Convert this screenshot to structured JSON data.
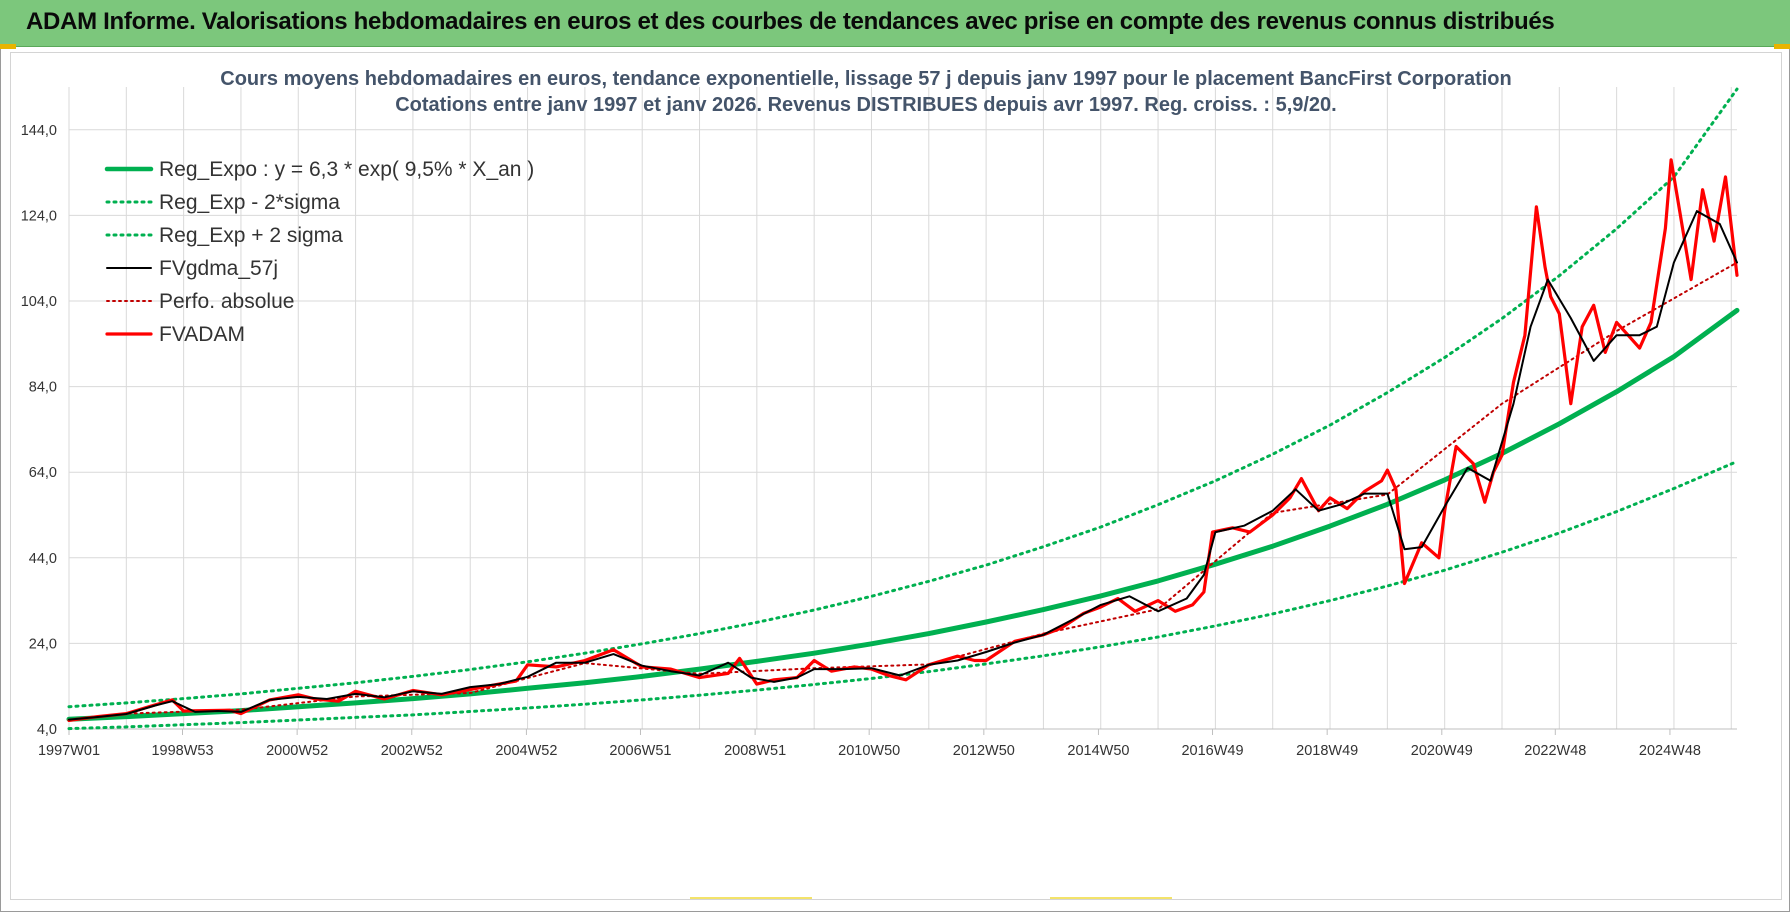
{
  "header": {
    "title": "ADAM Informe. Valorisations hebdomadaires en euros et des courbes de tendances avec prise en compte des revenus connus distribués"
  },
  "colors": {
    "banner": "#7cc77c",
    "reg": "#00b050",
    "avg": "#000000",
    "fvadam": "#ff0000",
    "perfo": "#c00000"
  },
  "chart_data": {
    "type": "line",
    "title": "Cours moyens hebdomadaires en euros, tendance exponentielle, lissage 57 j depuis janv 1997  pour le placement BancFirst Corporation",
    "subtitle": "Cotations entre janv 1997 et janv 2026. Revenus DISTRIBUES depuis avr 1997. Reg. croiss. : 5,9/20.",
    "xlabel": "",
    "ylabel": "",
    "xlim": [
      1997.0,
      2026.1
    ],
    "ylim": [
      4,
      154
    ],
    "yticks": [
      4,
      24,
      44,
      64,
      84,
      104,
      124,
      144
    ],
    "ytick_labels": [
      "4,0",
      "24,0",
      "44,0",
      "64,0",
      "84,0",
      "104,0",
      "124,0",
      "144,0"
    ],
    "xticks": [
      1997.0,
      1998.98,
      2000.98,
      2002.98,
      2004.98,
      2006.97,
      2008.97,
      2010.96,
      2012.96,
      2014.96,
      2016.95,
      2018.95,
      2020.95,
      2022.93,
      2024.93
    ],
    "xtick_labels": [
      "1997W01",
      "1998W53",
      "2000W52",
      "2002W52",
      "2004W52",
      "2006W51",
      "2008W51",
      "2010W50",
      "2012W50",
      "2014W50",
      "2016W49",
      "2018W49",
      "2020W49",
      "2022W48",
      "2024W48"
    ],
    "legend": {
      "position": "top-left",
      "entries": [
        "Reg_Expo : y = 6,3 * exp( 9,5% *  X_an )",
        "Reg_Exp - 2*sigma",
        "Reg_Exp + 2 sigma",
        "FVgdma_57j",
        "Perfo. absolue",
        "FVADAM"
      ]
    },
    "series": [
      {
        "name": "Reg_Expo : y = 6,3 * exp( 9,5% *  X_an )",
        "style": "solid-thick-green",
        "x": [
          1997,
          1998,
          1999,
          2000,
          2001,
          2002,
          2003,
          2004,
          2005,
          2006,
          2007,
          2008,
          2009,
          2010,
          2011,
          2012,
          2013,
          2014,
          2015,
          2016,
          2017,
          2018,
          2019,
          2020,
          2021,
          2022,
          2023,
          2024,
          2025,
          2026.1
        ],
        "values": [
          6.3,
          6.9,
          7.6,
          8.3,
          9.2,
          10.1,
          11.1,
          12.2,
          13.5,
          14.8,
          16.3,
          18.0,
          19.8,
          21.7,
          23.9,
          26.3,
          29.0,
          31.9,
          35.1,
          38.6,
          42.5,
          46.7,
          51.4,
          56.5,
          62.2,
          68.4,
          75.3,
          82.8,
          91.0,
          101.8
        ]
      },
      {
        "name": "Reg_Exp - 2*sigma",
        "style": "dotted-green",
        "x": [
          1997,
          1998,
          1999,
          2000,
          2001,
          2002,
          2003,
          2004,
          2005,
          2006,
          2007,
          2008,
          2009,
          2010,
          2011,
          2012,
          2013,
          2014,
          2015,
          2016,
          2017,
          2018,
          2019,
          2020,
          2021,
          2022,
          2023,
          2024,
          2025,
          2026.1
        ],
        "values": [
          4.1,
          4.5,
          5.0,
          5.5,
          6.1,
          6.7,
          7.3,
          8.1,
          8.9,
          9.8,
          10.8,
          11.9,
          13.1,
          14.4,
          15.8,
          17.4,
          19.2,
          21.1,
          23.2,
          25.5,
          28.1,
          30.9,
          34.0,
          37.4,
          41.1,
          45.3,
          49.8,
          54.8,
          60.2,
          66.5
        ]
      },
      {
        "name": "Reg_Exp + 2 sigma",
        "style": "dotted-green",
        "x": [
          1997,
          1998,
          1999,
          2000,
          2001,
          2002,
          2003,
          2004,
          2005,
          2006,
          2007,
          2008,
          2009,
          2010,
          2011,
          2012,
          2013,
          2014,
          2015,
          2016,
          2017,
          2018,
          2019,
          2020,
          2021,
          2022,
          2023,
          2024,
          2025,
          2026.1
        ],
        "values": [
          9.2,
          10.1,
          11.1,
          12.2,
          13.5,
          14.8,
          16.3,
          17.9,
          19.7,
          21.7,
          23.9,
          26.3,
          28.9,
          31.8,
          35.0,
          38.5,
          42.3,
          46.6,
          51.2,
          56.4,
          62.0,
          68.2,
          75.0,
          82.6,
          90.8,
          99.9,
          109.9,
          120.9,
          133.0,
          153.5
        ]
      },
      {
        "name": "FVgdma_57j",
        "style": "solid-black",
        "x": [
          1997.0,
          1997.5,
          1998.0,
          1998.5,
          1998.8,
          1999.2,
          1999.6,
          2000.0,
          2000.5,
          2001.0,
          2001.5,
          2002.0,
          2002.5,
          2003.0,
          2003.5,
          2004.0,
          2004.5,
          2005.0,
          2005.5,
          2006.0,
          2006.5,
          2007.0,
          2007.5,
          2008.0,
          2008.5,
          2008.9,
          2009.3,
          2009.7,
          2010.0,
          2010.5,
          2011.0,
          2011.5,
          2012.0,
          2012.5,
          2013.0,
          2013.5,
          2014.0,
          2014.5,
          2015.0,
          2015.5,
          2016.0,
          2016.5,
          2016.8,
          2017.0,
          2017.5,
          2018.0,
          2018.4,
          2018.8,
          2019.2,
          2019.6,
          2020.0,
          2020.3,
          2020.6,
          2021.0,
          2021.4,
          2021.8,
          2022.2,
          2022.5,
          2022.8,
          2023.2,
          2023.6,
          2024.0,
          2024.4,
          2024.7,
          2025.0,
          2025.4,
          2025.8,
          2026.1
        ],
        "values": [
          6.2,
          6.8,
          7.5,
          9.5,
          10.5,
          8.0,
          8.2,
          8.0,
          10.8,
          11.5,
          11.0,
          12.2,
          11.4,
          12.8,
          12.2,
          13.8,
          14.5,
          16.2,
          19.5,
          19.5,
          21.5,
          18.8,
          17.5,
          16.5,
          19.5,
          16.0,
          15.0,
          16.0,
          18.0,
          18.0,
          18.2,
          16.5,
          19.0,
          20.0,
          22.0,
          24.2,
          26.0,
          29.5,
          33.0,
          35.0,
          31.5,
          34.5,
          40.0,
          50.0,
          51.5,
          55.0,
          60.0,
          55.0,
          56.5,
          59.0,
          59.0,
          46.0,
          46.5,
          56.0,
          65.0,
          62.0,
          80.0,
          98.0,
          109.0,
          100.0,
          90.0,
          96.0,
          96.0,
          98.0,
          113.0,
          125.0,
          122.0,
          113.0
        ]
      },
      {
        "name": "Perfo. absolue",
        "style": "dotted-red",
        "x": [
          1997.0,
          1998.0,
          2000.0,
          2002.0,
          2004.0,
          2006.0,
          2008.0,
          2010.0,
          2012.0,
          2014.0,
          2016.0,
          2018.0,
          2020.0,
          2022.0,
          2024.0,
          2026.1
        ],
        "values": [
          6.2,
          7.6,
          8.5,
          11.6,
          12.4,
          19.4,
          16.9,
          18.2,
          19.1,
          26.3,
          32.0,
          54.5,
          58.8,
          80.0,
          97.0,
          113.0
        ]
      },
      {
        "name": "FVADAM",
        "style": "solid-thick-red",
        "x": [
          1997.0,
          1997.5,
          1998.0,
          1998.4,
          1998.8,
          1999.0,
          1999.4,
          1999.8,
          2000.0,
          2000.5,
          2001.0,
          2001.3,
          2001.7,
          2002.0,
          2002.5,
          2003.0,
          2003.5,
          2004.0,
          2004.5,
          2004.8,
          2005.0,
          2005.5,
          2006.0,
          2006.5,
          2007.0,
          2007.5,
          2008.0,
          2008.5,
          2008.7,
          2009.0,
          2009.3,
          2009.7,
          2010.0,
          2010.3,
          2010.7,
          2011.0,
          2011.3,
          2011.6,
          2012.0,
          2012.5,
          2012.8,
          2013.0,
          2013.5,
          2014.0,
          2014.3,
          2014.7,
          2015.0,
          2015.3,
          2015.6,
          2016.0,
          2016.3,
          2016.6,
          2016.8,
          2016.95,
          2017.3,
          2017.6,
          2018.0,
          2018.3,
          2018.5,
          2018.8,
          2019.0,
          2019.3,
          2019.6,
          2019.9,
          2020.0,
          2020.15,
          2020.3,
          2020.6,
          2020.9,
          2021.0,
          2021.2,
          2021.5,
          2021.7,
          2021.85,
          2022.0,
          2022.2,
          2022.4,
          2022.6,
          2022.75,
          2022.85,
          2023.0,
          2023.2,
          2023.4,
          2023.6,
          2023.8,
          2024.0,
          2024.2,
          2024.4,
          2024.6,
          2024.85,
          2024.95,
          2025.1,
          2025.3,
          2025.5,
          2025.7,
          2025.9,
          2026.1
        ],
        "values": [
          6.0,
          6.9,
          7.6,
          9.2,
          10.8,
          8.2,
          8.3,
          8.4,
          7.6,
          10.8,
          12.0,
          11.0,
          10.5,
          12.8,
          11.0,
          13.0,
          12.0,
          13.2,
          14.5,
          15.2,
          19.0,
          18.5,
          20.0,
          22.5,
          18.5,
          18.0,
          16.0,
          17.0,
          20.5,
          14.5,
          15.5,
          16.0,
          20.0,
          17.5,
          18.5,
          18.0,
          16.5,
          15.5,
          19.0,
          21.0,
          20.0,
          20.0,
          24.5,
          26.0,
          27.5,
          31.0,
          32.5,
          34.5,
          31.5,
          34.0,
          31.5,
          33.0,
          36.0,
          50.0,
          51.0,
          50.0,
          54.0,
          58.0,
          62.5,
          55.0,
          58.0,
          55.5,
          59.5,
          62.0,
          64.5,
          60.0,
          38.0,
          47.5,
          44.0,
          55.0,
          70.0,
          66.0,
          57.0,
          64.0,
          68.0,
          85.0,
          96.0,
          126.0,
          112.0,
          105.0,
          101.0,
          80.0,
          98.0,
          103.0,
          92.0,
          99.0,
          96.0,
          93.0,
          99.0,
          121.0,
          137.0,
          125.0,
          109.0,
          130.0,
          118.0,
          133.0,
          110.0
        ]
      }
    ]
  }
}
